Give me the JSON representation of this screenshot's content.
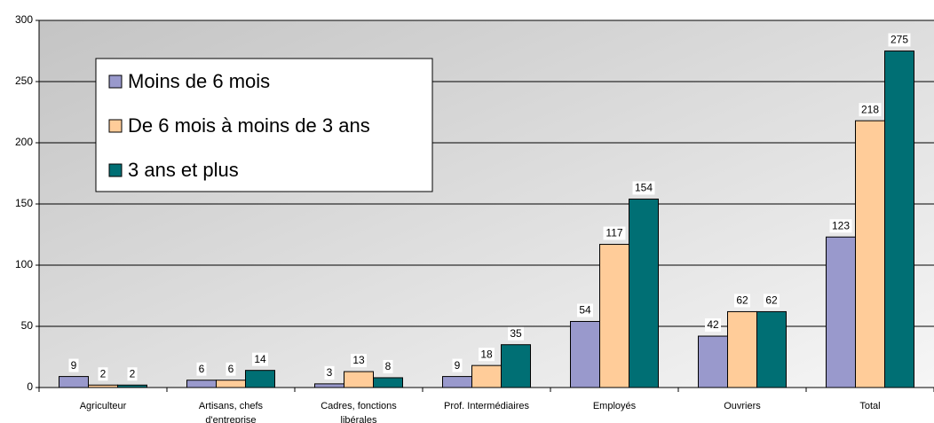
{
  "chart_data": {
    "type": "bar",
    "categories": [
      "Agriculteur",
      "Artisans, chefs d'entreprise",
      "Cadres, fonctions libérales",
      "Prof. Intermédiaires",
      "Employés",
      "Ouvriers",
      "Total"
    ],
    "series": [
      {
        "name": "Moins de 6 mois",
        "color": "#9999cc",
        "values": [
          9,
          6,
          3,
          9,
          54,
          42,
          123
        ]
      },
      {
        "name": "De 6 mois à moins de 3 ans",
        "color": "#ffcc99",
        "values": [
          2,
          6,
          13,
          18,
          117,
          62,
          218
        ]
      },
      {
        "name": "3 ans et plus",
        "color": "#006f74",
        "values": [
          2,
          14,
          8,
          35,
          154,
          62,
          275
        ]
      }
    ],
    "ylim": [
      0,
      300
    ],
    "yticks": [
      0,
      50,
      100,
      150,
      200,
      250,
      300
    ],
    "grid": true
  }
}
